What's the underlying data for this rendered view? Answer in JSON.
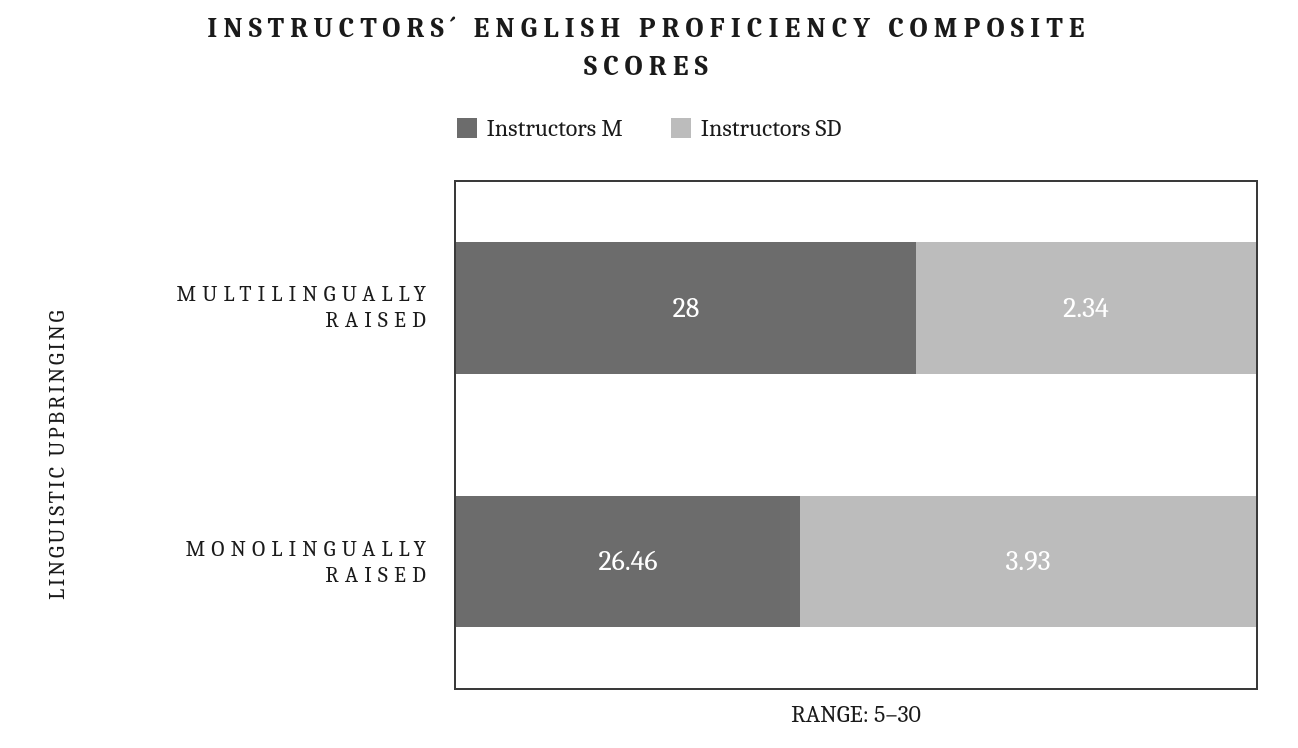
{
  "chart": {
    "type": "stacked-horizontal-bar",
    "title": "INSTRUCTORS´ ENGLISH PROFICIENCY COMPOSITE SCORES",
    "title_fontsize": 28,
    "title_letter_spacing_em": 0.22,
    "ylabel": "LINGUISTIC UPBRINGING",
    "xlabel": "RANGE: 5–30",
    "label_fontsize": 22,
    "legend": {
      "items": [
        {
          "key": "m",
          "label": "Instructors M",
          "color": "#6c6c6c"
        },
        {
          "key": "sd",
          "label": "Instructors SD",
          "color": "#bcbcbc"
        }
      ],
      "fontsize": 24
    },
    "series_colors": {
      "m": "#6c6c6c",
      "sd": "#bcbcbc"
    },
    "value_text_color": "#ffffff",
    "value_fontsize": 28,
    "plot_border_color": "#3a3a3a",
    "background_color": "#ffffff",
    "categories": [
      {
        "id": "multi",
        "label": "MULTILINGUALLY RAISED",
        "segments": [
          {
            "series": "m",
            "value": 28,
            "display": "28",
            "width_pct": 57.5
          },
          {
            "series": "sd",
            "value": 2.34,
            "display": "2.34",
            "width_pct": 42.5
          }
        ],
        "total_width_pct": 100.0
      },
      {
        "id": "mono",
        "label": "MONOLINGUALLY RAISED",
        "segments": [
          {
            "series": "m",
            "value": 26.46,
            "display": "26.46",
            "width_pct": 43.0
          },
          {
            "series": "sd",
            "value": 3.93,
            "display": "3.93",
            "width_pct": 57.0
          }
        ],
        "total_width_pct": 100.0
      }
    ]
  }
}
